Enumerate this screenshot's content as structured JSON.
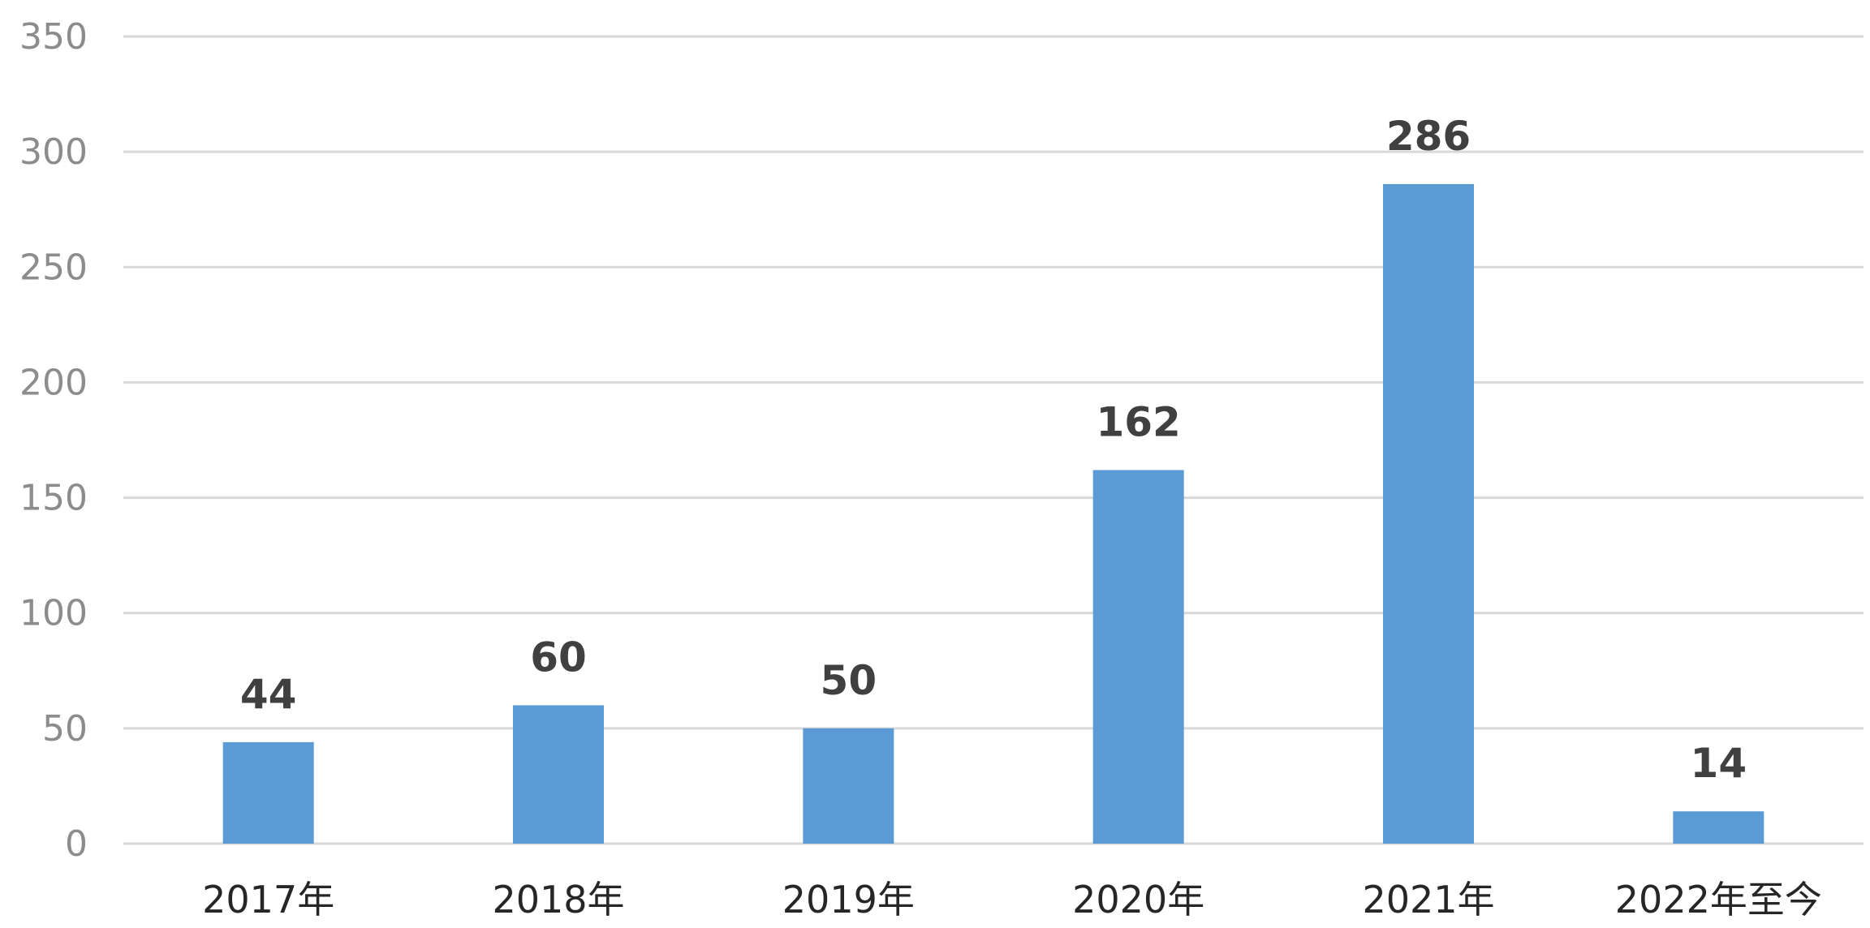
{
  "chart_data": {
    "type": "bar",
    "categories": [
      "2017年",
      "2018年",
      "2019年",
      "2020年",
      "2021年",
      "2022年至今"
    ],
    "values": [
      44,
      60,
      50,
      162,
      286,
      14
    ],
    "data_labels": [
      "44",
      "60",
      "50",
      "162",
      "286",
      "14"
    ],
    "y_ticks": [
      "0",
      "50",
      "100",
      "150",
      "200",
      "250",
      "300",
      "350"
    ],
    "ylim": [
      0,
      350
    ],
    "title": "",
    "xlabel": "",
    "ylabel": "",
    "grid": true,
    "legend": "none",
    "colors": {
      "bar": "#5b9bd5",
      "grid": "#d9d9d9",
      "y_tick_text": "#8c8c8c",
      "x_tick_text": "#262626",
      "data_label_text": "#404040"
    }
  }
}
